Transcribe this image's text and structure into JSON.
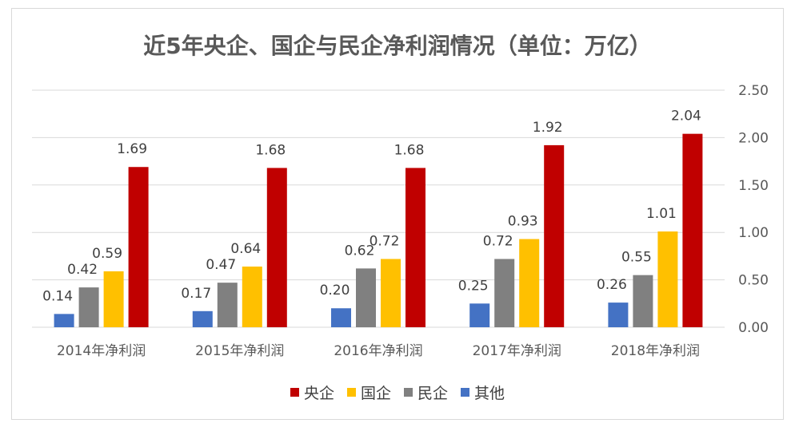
{
  "chart_data": {
    "type": "bar",
    "title": "近5年央企、国企与民企净利润情况（单位：万亿）",
    "categories": [
      "2014年净利润",
      "2015年净利润",
      "2016年净利润",
      "2017年净利润",
      "2018年净利润"
    ],
    "ylim": [
      0,
      2.5
    ],
    "yticks": [
      "0.00",
      "0.50",
      "1.00",
      "1.50",
      "2.00",
      "2.50"
    ],
    "y_axis_position": "right",
    "grid": true,
    "legend_position": "bottom",
    "series": [
      {
        "name": "其他",
        "color": "#4472c4",
        "values": [
          0.14,
          0.17,
          0.2,
          0.25,
          0.26
        ],
        "labels": [
          "0.14",
          "0.17",
          "0.20",
          "0.25",
          "0.26"
        ]
      },
      {
        "name": "民企",
        "color": "#808080",
        "values": [
          0.42,
          0.47,
          0.62,
          0.72,
          0.55
        ],
        "labels": [
          "0.42",
          "0.47",
          "0.62",
          "0.72",
          "0.55"
        ]
      },
      {
        "name": "国企",
        "color": "#ffc000",
        "values": [
          0.59,
          0.64,
          0.72,
          0.93,
          1.01
        ],
        "labels": [
          "0.59",
          "0.64",
          "0.72",
          "0.93",
          "1.01"
        ]
      },
      {
        "name": "央企",
        "color": "#c00000",
        "values": [
          1.69,
          1.68,
          1.68,
          1.92,
          2.04
        ],
        "labels": [
          "1.69",
          "1.68",
          "1.68",
          "1.92",
          "2.04"
        ]
      }
    ],
    "legend_order": [
      "央企",
      "国企",
      "民企",
      "其他"
    ]
  },
  "colors": {
    "grid": "#d9d9d9",
    "axis_text": "#595959",
    "label_text": "#404040"
  }
}
